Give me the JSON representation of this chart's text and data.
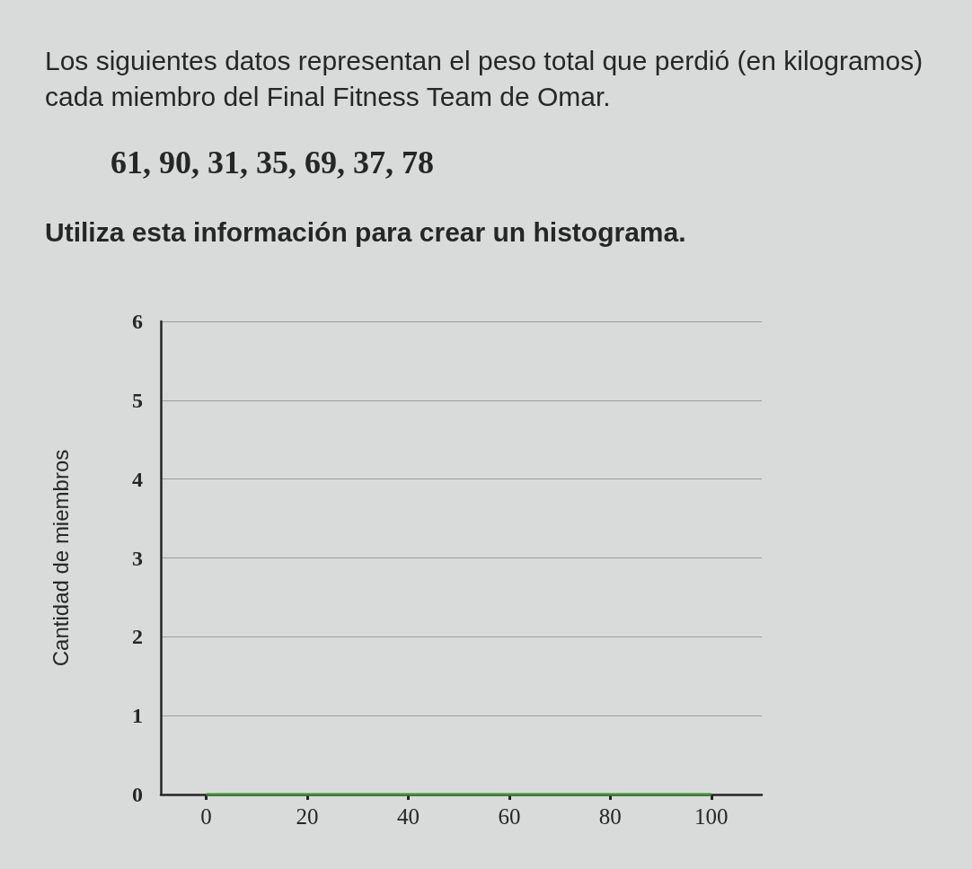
{
  "chart_data": {
    "type": "histogram",
    "title": "Los siguientes datos representan el peso total que perdió (en kilogramos) cada miembro del Final Fitness Team de Omar.",
    "annotations": [
      "61, 90, 31, 35, 69, 37, 78",
      "Utiliza esta información para crear un histograma."
    ],
    "ylabel": "Cantidad de miembros",
    "bins": [
      0,
      20,
      40,
      60,
      80,
      100
    ],
    "values": [
      0,
      0,
      0,
      0,
      0
    ],
    "color": "#3d8f2f",
    "xlim": [
      -9,
      110
    ],
    "xticks": [
      0,
      20,
      40,
      60,
      80,
      100
    ],
    "ylim": [
      0,
      6
    ],
    "yticks": [
      0,
      1,
      2,
      3,
      4,
      5,
      6
    ],
    "grid": "y"
  }
}
